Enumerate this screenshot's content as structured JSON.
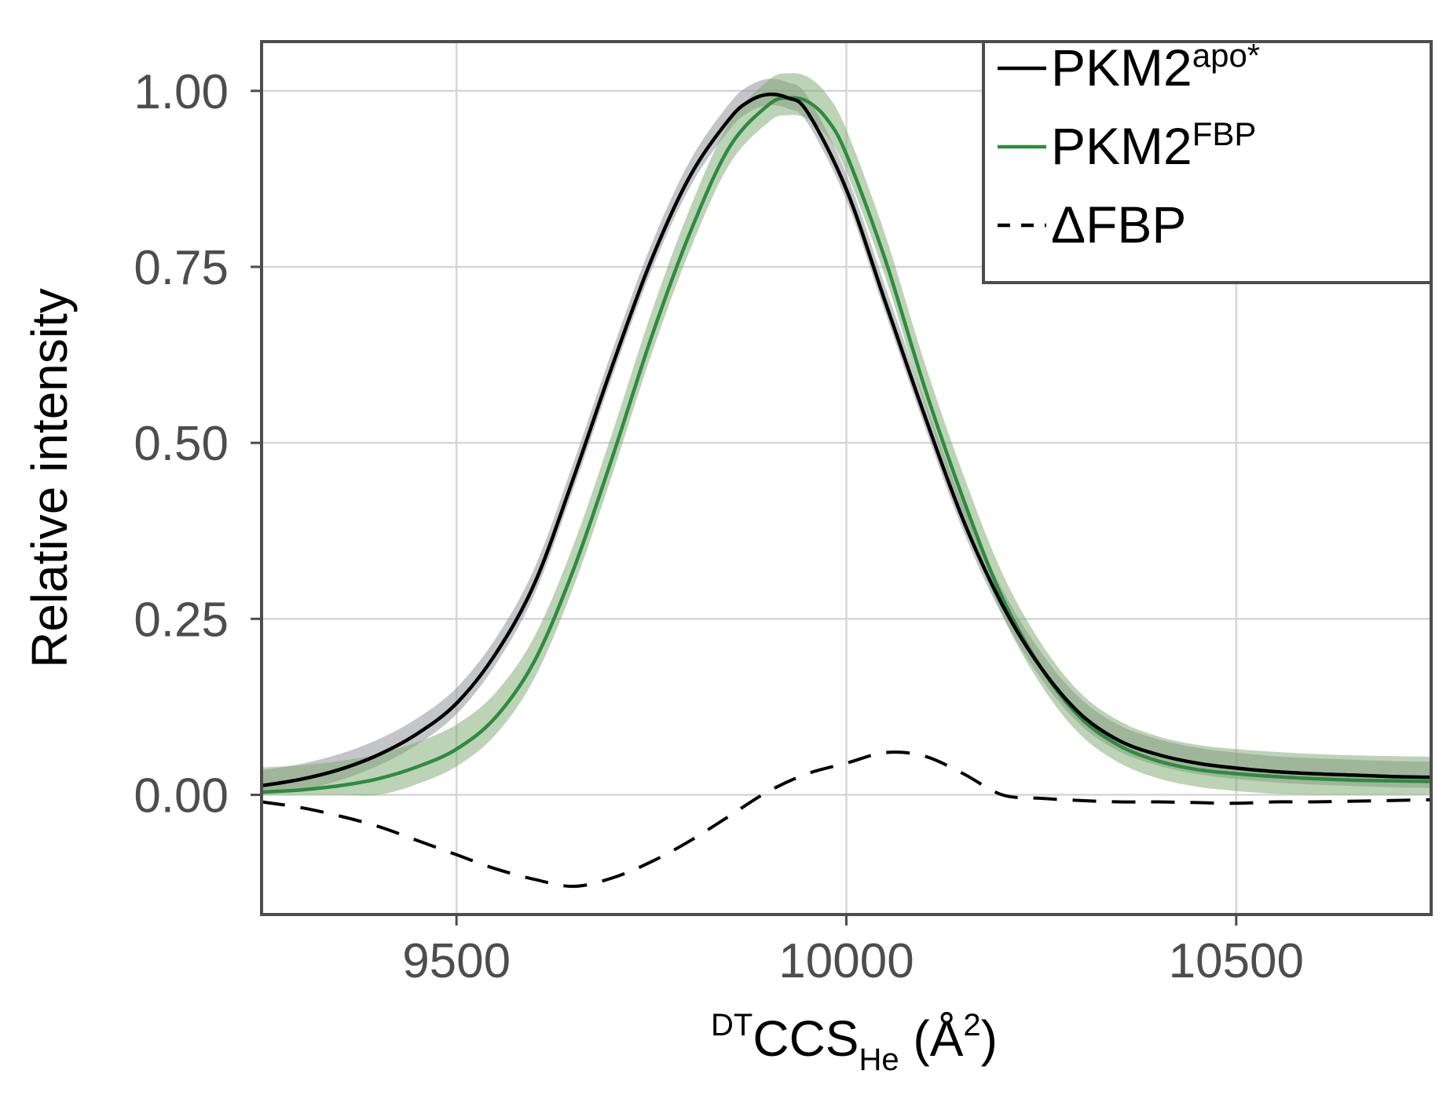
{
  "chart_data": {
    "type": "line",
    "xlabel": {
      "prefix": "DT",
      "main": "CCS",
      "sub": "He",
      "unit": " (Å",
      "unit_sup": "2",
      "unit_close": ")"
    },
    "ylabel": "Relative intensity",
    "xlim": [
      9250,
      10750
    ],
    "ylim": [
      -0.17,
      1.07
    ],
    "xticks": [
      9500,
      10000,
      10500
    ],
    "yticks": [
      0.0,
      0.25,
      0.5,
      0.75,
      1.0
    ],
    "xtick_labels": [
      "9500",
      "10000",
      "10500"
    ],
    "ytick_labels": [
      "0.00",
      "0.25",
      "0.50",
      "0.75",
      "1.00"
    ],
    "grid": true,
    "legend": {
      "position": "top-right"
    },
    "series": [
      {
        "name": "PKM2",
        "name_sup": "apo*",
        "color": "#000000",
        "band_color": "#8a8c94",
        "style": "solid",
        "x": [
          9250,
          9300,
          9350,
          9400,
          9450,
          9500,
          9550,
          9600,
          9650,
          9700,
          9750,
          9800,
          9850,
          9875,
          9900,
          9925,
          9950,
          10000,
          10050,
          10100,
          10150,
          10200,
          10250,
          10300,
          10350,
          10400,
          10450,
          10500,
          10550,
          10600,
          10650,
          10700,
          10750
        ],
        "y": [
          0.013,
          0.022,
          0.036,
          0.057,
          0.087,
          0.13,
          0.2,
          0.3,
          0.45,
          0.61,
          0.76,
          0.88,
          0.96,
          0.985,
          0.995,
          0.99,
          0.97,
          0.86,
          0.7,
          0.54,
          0.39,
          0.27,
          0.18,
          0.115,
          0.077,
          0.057,
          0.045,
          0.038,
          0.033,
          0.03,
          0.028,
          0.026,
          0.025
        ],
        "band_halfwidth": 0.022
      },
      {
        "name": "PKM2",
        "name_sup": "FBP",
        "color": "#2e8b40",
        "band_color": "#7aa86e",
        "style": "solid",
        "x": [
          9250,
          9300,
          9350,
          9400,
          9450,
          9500,
          9550,
          9600,
          9650,
          9700,
          9750,
          9800,
          9850,
          9900,
          9925,
          9950,
          9975,
          10000,
          10050,
          10100,
          10150,
          10200,
          10250,
          10300,
          10350,
          10400,
          10450,
          10500,
          10550,
          10600,
          10650,
          10700,
          10750
        ],
        "y": [
          0.004,
          0.007,
          0.013,
          0.023,
          0.04,
          0.065,
          0.11,
          0.19,
          0.32,
          0.48,
          0.65,
          0.8,
          0.92,
          0.98,
          0.99,
          0.985,
          0.96,
          0.91,
          0.76,
          0.58,
          0.42,
          0.28,
          0.18,
          0.11,
          0.07,
          0.048,
          0.036,
          0.03,
          0.026,
          0.023,
          0.021,
          0.02,
          0.019
        ],
        "band_halfwidth": 0.035
      },
      {
        "name": "ΔFBP",
        "color": "#000000",
        "style": "dashed",
        "x": [
          9250,
          9300,
          9350,
          9400,
          9450,
          9500,
          9550,
          9600,
          9650,
          9700,
          9750,
          9800,
          9850,
          9900,
          9950,
          10000,
          10050,
          10100,
          10150,
          10200,
          10250,
          10300,
          10350,
          10400,
          10450,
          10500,
          10550,
          10600,
          10650,
          10700,
          10750
        ],
        "y": [
          -0.01,
          -0.018,
          -0.03,
          -0.045,
          -0.065,
          -0.085,
          -0.105,
          -0.12,
          -0.13,
          -0.118,
          -0.095,
          -0.065,
          -0.03,
          0.005,
          0.03,
          0.045,
          0.06,
          0.055,
          0.03,
          0.0,
          -0.005,
          -0.008,
          -0.01,
          -0.01,
          -0.011,
          -0.012,
          -0.01,
          -0.01,
          -0.009,
          -0.008,
          -0.007
        ]
      }
    ]
  }
}
